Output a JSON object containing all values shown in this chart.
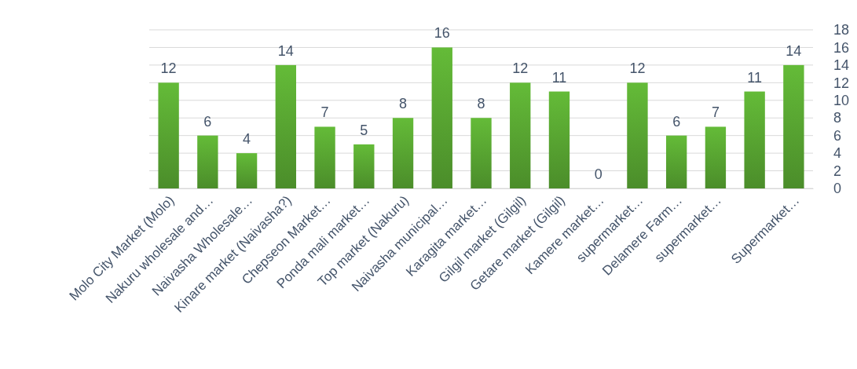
{
  "chart_data": {
    "type": "bar",
    "categories": [
      "Molo City Market (Molo)",
      "Nakuru wholesale and…",
      "Naivasha Wholesale…",
      "Kinare market (Naivasha?)",
      "Chepseon Market…",
      "Ponda mali market…",
      "Top market (Nakuru)",
      "Naivasha municipal…",
      "Karagita market…",
      "Gilgil market (Gilgil)",
      "Getare market (Gilgil)",
      "Kamere market…",
      "supermarket…",
      "Delamere Farm…",
      "supermarket…",
      null,
      "Supermarket…"
    ],
    "values": [
      12,
      6,
      4,
      14,
      7,
      5,
      8,
      16,
      8,
      12,
      11,
      0,
      12,
      6,
      7,
      11,
      14
    ],
    "color": "#5aa832",
    "ylim": [
      0,
      18
    ],
    "yticks": [
      0,
      2,
      4,
      6,
      8,
      10,
      12,
      14,
      16,
      18
    ],
    "grid": "y",
    "data_labels": true
  }
}
